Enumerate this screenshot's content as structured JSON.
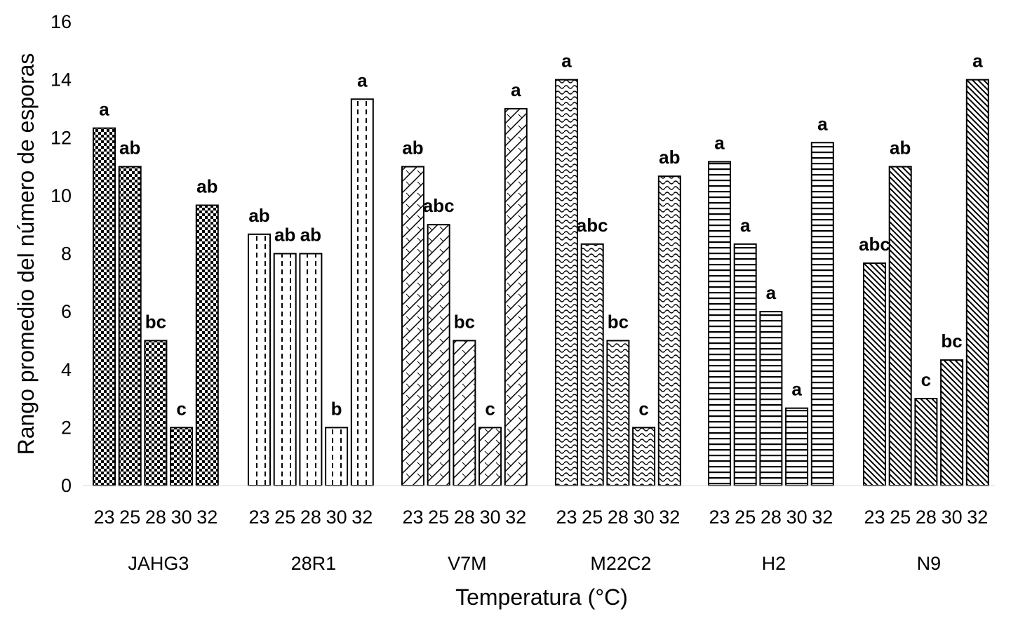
{
  "chart_data": {
    "type": "bar",
    "title": "",
    "xlabel": "Temperatura (°C)",
    "ylabel": "Rango promedio del número de esporas",
    "ylim": [
      0,
      16
    ],
    "yticks": [
      "0",
      "2",
      "4",
      "6",
      "8",
      "10",
      "12",
      "14",
      "16"
    ],
    "grid": false,
    "categories": [
      "23",
      "25",
      "28",
      "30",
      "32"
    ],
    "groups": [
      {
        "name": "JAHG3",
        "pattern": "checker",
        "values": [
          12.33,
          11.0,
          5.0,
          2.0,
          9.67
        ],
        "labels": [
          "a",
          "ab",
          "bc",
          "c",
          "ab"
        ]
      },
      {
        "name": "28R1",
        "pattern": "dashes",
        "values": [
          8.67,
          8.0,
          8.0,
          2.0,
          13.33
        ],
        "labels": [
          "ab",
          "ab",
          "ab",
          "b",
          "a"
        ]
      },
      {
        "name": "V7M",
        "pattern": "diagonal",
        "values": [
          11.0,
          9.0,
          5.0,
          2.0,
          13.0
        ],
        "labels": [
          "ab",
          "abc",
          "bc",
          "c",
          "a"
        ]
      },
      {
        "name": "M22C2",
        "pattern": "waves",
        "values": [
          14.0,
          8.33,
          5.0,
          2.0,
          10.67
        ],
        "labels": [
          "a",
          "abc",
          "bc",
          "c",
          "ab"
        ]
      },
      {
        "name": "H2",
        "pattern": "horizontal",
        "values": [
          11.17,
          8.33,
          6.0,
          2.67,
          11.83
        ],
        "labels": [
          "a",
          "a",
          "a",
          "a",
          "a"
        ]
      },
      {
        "name": "N9",
        "pattern": "hatch",
        "values": [
          7.67,
          11.0,
          3.0,
          4.33,
          14.0
        ],
        "labels": [
          "abc",
          "ab",
          "c",
          "bc",
          "a"
        ]
      }
    ]
  }
}
